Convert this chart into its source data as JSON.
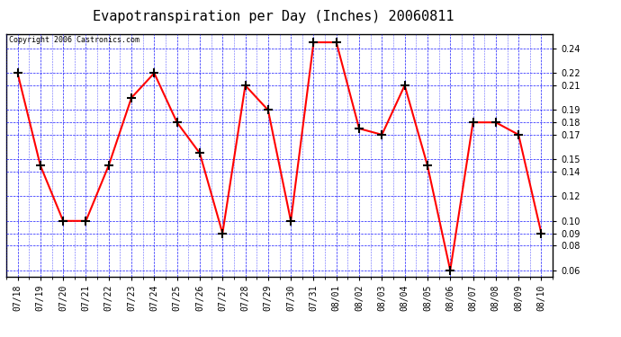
{
  "title": "Evapotranspiration per Day (Inches) 20060811",
  "copyright": "Copyright 2006 Castronics.com",
  "dates": [
    "07/18",
    "07/19",
    "07/20",
    "07/21",
    "07/22",
    "07/23",
    "07/24",
    "07/25",
    "07/26",
    "07/27",
    "07/28",
    "07/29",
    "07/30",
    "07/31",
    "08/01",
    "08/02",
    "08/03",
    "08/04",
    "08/05",
    "08/06",
    "08/07",
    "08/08",
    "08/09",
    "08/10"
  ],
  "values": [
    0.22,
    0.145,
    0.1,
    0.1,
    0.145,
    0.2,
    0.22,
    0.18,
    0.155,
    0.09,
    0.21,
    0.19,
    0.1,
    0.245,
    0.245,
    0.175,
    0.17,
    0.21,
    0.145,
    0.06,
    0.18,
    0.18,
    0.17,
    0.09
  ],
  "line_color": "red",
  "marker": "+",
  "marker_color": "black",
  "bg_color": "white",
  "grid_color": "blue",
  "ylim": [
    0.055,
    0.252
  ],
  "yticks": [
    0.06,
    0.08,
    0.09,
    0.1,
    0.12,
    0.14,
    0.15,
    0.17,
    0.18,
    0.19,
    0.21,
    0.22,
    0.24
  ],
  "title_fontsize": 11,
  "copyright_fontsize": 6,
  "tick_fontsize": 7
}
